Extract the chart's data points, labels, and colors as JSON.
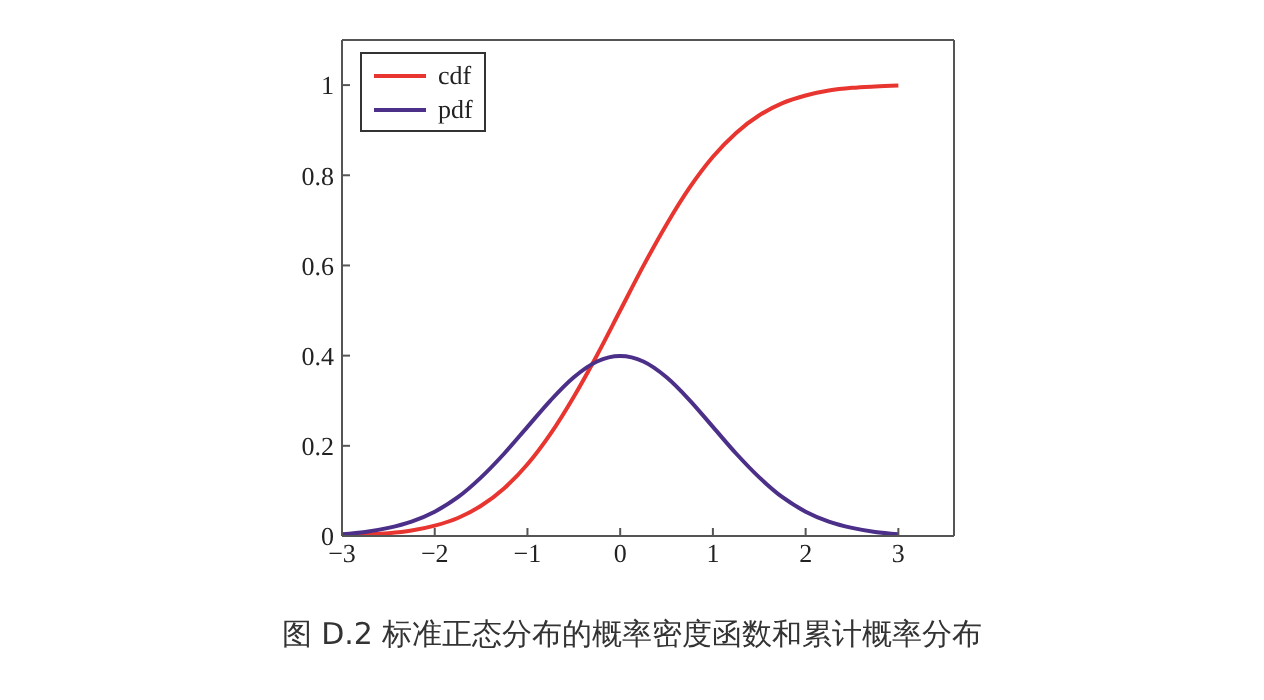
{
  "chart_data": {
    "type": "line",
    "x": [
      -3,
      -2.75,
      -2.5,
      -2.25,
      -2,
      -1.75,
      -1.5,
      -1.25,
      -1,
      -0.75,
      -0.5,
      -0.25,
      0,
      0.25,
      0.5,
      0.75,
      1,
      1.25,
      1.5,
      1.75,
      2,
      2.25,
      2.5,
      2.75,
      3
    ],
    "series": [
      {
        "name": "cdf",
        "color": "#e8352f",
        "values": [
          0.001,
          0.003,
          0.006,
          0.012,
          0.023,
          0.04,
          0.067,
          0.106,
          0.159,
          0.227,
          0.309,
          0.401,
          0.5,
          0.599,
          0.691,
          0.773,
          0.841,
          0.894,
          0.933,
          0.96,
          0.977,
          0.988,
          0.994,
          0.997,
          0.999
        ]
      },
      {
        "name": "pdf",
        "color": "#4b2f88",
        "values": [
          0.004,
          0.009,
          0.018,
          0.032,
          0.054,
          0.086,
          0.13,
          0.183,
          0.242,
          0.301,
          0.352,
          0.387,
          0.399,
          0.387,
          0.352,
          0.301,
          0.242,
          0.183,
          0.13,
          0.086,
          0.054,
          0.032,
          0.018,
          0.009,
          0.004
        ]
      }
    ],
    "xlim": [
      -3,
      3.6
    ],
    "xticks": [
      -3,
      -2,
      -1,
      0,
      1,
      2,
      3
    ],
    "ylim": [
      0,
      1.1
    ],
    "yticks": [
      0,
      0.2,
      0.4,
      0.6,
      0.8,
      1
    ],
    "grid": false,
    "legend": "top left",
    "marker": "none",
    "line_style": "solid",
    "annotations": [
      "图 D.2 标准正态分布的概率密度函数和累计概率分布"
    ]
  }
}
